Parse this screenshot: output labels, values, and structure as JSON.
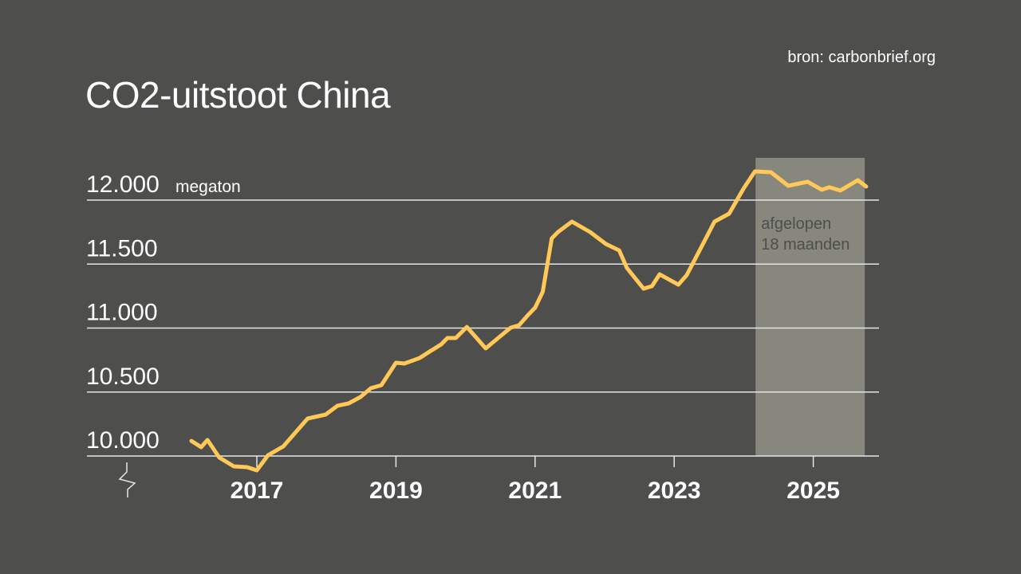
{
  "chart_data": {
    "type": "line",
    "title": "CO2-uitstoot China",
    "source": "bron: carbonbrief.org",
    "ylabel_unit": "megaton",
    "yticks": [
      10000,
      10500,
      11000,
      11500,
      12000
    ],
    "ytick_labels": [
      "10.000",
      "10.500",
      "11.000",
      "11.500",
      "12.000"
    ],
    "xticks": [
      2017,
      2019,
      2021,
      2023,
      2025
    ],
    "xtick_labels": [
      "2017",
      "2019",
      "2021",
      "2023",
      "2025"
    ],
    "xlim": [
      2014.86,
      2025.94
    ],
    "ylim": [
      10000,
      12330
    ],
    "y_axis_break": true,
    "grid": true,
    "line_color": "#ffc857",
    "highlight": {
      "x_start": 2024.17,
      "x_end": 2025.74,
      "label_lines": [
        "afgelopen",
        "18 maanden"
      ],
      "color": "#87877e"
    },
    "series": [
      {
        "x": [
          2016.06,
          2016.2,
          2016.29,
          2016.46,
          2016.67,
          2016.86,
          2017.0,
          2017.16,
          2017.38,
          2017.73,
          2017.99,
          2018.16,
          2018.32,
          2018.49,
          2018.64,
          2018.79,
          2019.0,
          2019.12,
          2019.34,
          2019.5,
          2019.65,
          2019.74,
          2019.86,
          2020.02,
          2020.29,
          2020.51,
          2020.65,
          2020.77,
          2020.9,
          2021.0,
          2021.11,
          2021.24,
          2021.33,
          2021.53,
          2021.79,
          2022.02,
          2022.21,
          2022.32,
          2022.56,
          2022.68,
          2022.79,
          2023.06,
          2023.18,
          2023.36,
          2023.58,
          2023.79,
          2024.0,
          2024.16,
          2024.39,
          2024.64,
          2024.92,
          2025.12,
          2025.23,
          2025.39,
          2025.64,
          2025.76
        ],
        "y": [
          10118,
          10069,
          10125,
          9988,
          9919,
          9913,
          9888,
          10006,
          10075,
          10293,
          10324,
          10393,
          10411,
          10461,
          10530,
          10554,
          10729,
          10723,
          10766,
          10822,
          10872,
          10922,
          10922,
          11009,
          10841,
          10941,
          11003,
          11022,
          11103,
          11159,
          11283,
          11701,
          11751,
          11832,
          11751,
          11657,
          11607,
          11470,
          11308,
          11327,
          11420,
          11339,
          11414,
          11601,
          11832,
          11894,
          12093,
          12224,
          12218,
          12112,
          12143,
          12081,
          12100,
          12075,
          12156,
          12106
        ]
      }
    ]
  }
}
